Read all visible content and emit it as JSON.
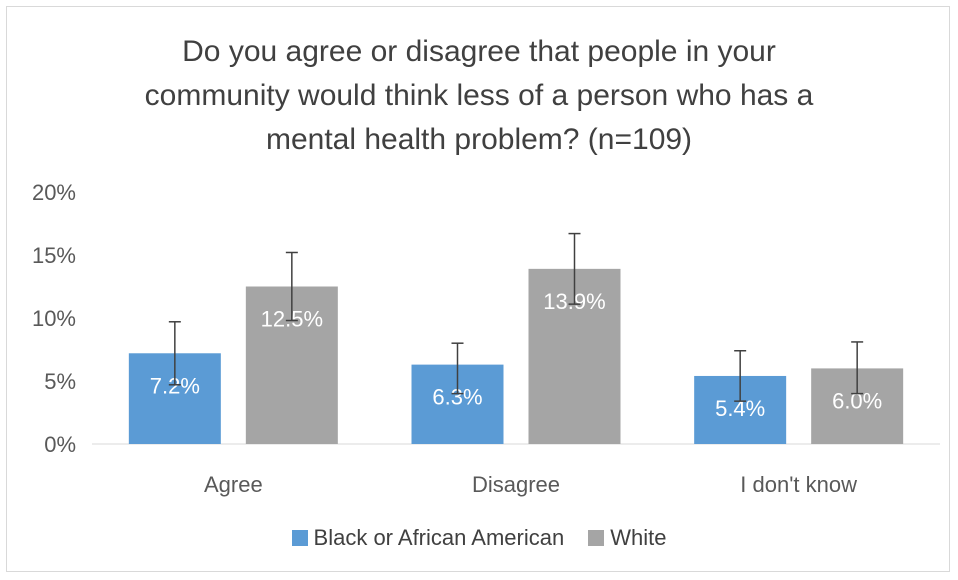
{
  "chart_data": {
    "type": "bar",
    "title_lines": [
      "Do you agree or disagree that people in your",
      "community would think less of a person who has a",
      "mental health problem? (n=109)"
    ],
    "categories": [
      "Agree",
      "Disagree",
      "I don't know"
    ],
    "series": [
      {
        "name": "Black or African American",
        "values": [
          7.2,
          6.3,
          5.4
        ],
        "labels": [
          "7.2%",
          "6.3%",
          "5.4%"
        ],
        "error_low": [
          4.7,
          4.0,
          3.4
        ],
        "error_high": [
          9.7,
          8.0,
          7.4
        ],
        "color": "#5b9bd5"
      },
      {
        "name": "White",
        "values": [
          12.5,
          13.9,
          6.0
        ],
        "labels": [
          "12.5%",
          "13.9%",
          "6.0%"
        ],
        "error_low": [
          9.8,
          11.1,
          4.0
        ],
        "error_high": [
          15.2,
          16.7,
          8.1
        ],
        "color": "#a5a5a5"
      }
    ],
    "y_ticks": [
      0,
      5,
      10,
      15,
      20
    ],
    "y_tick_labels": [
      "0%",
      "5%",
      "10%",
      "15%",
      "20%"
    ],
    "ylim": [
      0,
      20
    ],
    "grid": false,
    "legend_position": "bottom"
  }
}
